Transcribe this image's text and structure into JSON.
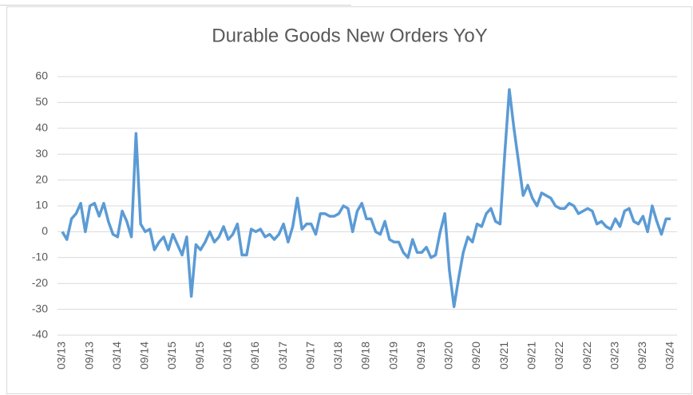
{
  "chart_data": {
    "type": "line",
    "title": "Durable Goods New Orders YoY",
    "categories": [
      "03/13",
      null,
      null,
      null,
      null,
      null,
      "09/13",
      null,
      null,
      null,
      null,
      null,
      "03/14",
      null,
      null,
      null,
      null,
      null,
      "09/14",
      null,
      null,
      null,
      null,
      null,
      "03/15",
      null,
      null,
      null,
      null,
      null,
      "09/15",
      null,
      null,
      null,
      null,
      null,
      "03/16",
      null,
      null,
      null,
      null,
      null,
      "09/16",
      null,
      null,
      null,
      null,
      null,
      "03/17",
      null,
      null,
      null,
      null,
      null,
      "09/17",
      null,
      null,
      null,
      null,
      null,
      "03/18",
      null,
      null,
      null,
      null,
      null,
      "09/18",
      null,
      null,
      null,
      null,
      null,
      "03/19",
      null,
      null,
      null,
      null,
      null,
      "09/19",
      null,
      null,
      null,
      null,
      null,
      "03/20",
      null,
      null,
      null,
      null,
      null,
      "09/20",
      null,
      null,
      null,
      null,
      null,
      "03/21",
      null,
      null,
      null,
      null,
      null,
      "09/21",
      null,
      null,
      null,
      null,
      null,
      "03/22",
      null,
      null,
      null,
      null,
      null,
      "09/22",
      null,
      null,
      null,
      null,
      null,
      "03/23",
      null,
      null,
      null,
      null,
      null,
      "09/23",
      null,
      null,
      null,
      null,
      null,
      "03/24"
    ],
    "series": [
      {
        "name": "Durable Goods New Orders YoY",
        "color": "#5b9bd5",
        "values": [
          0,
          -3,
          5,
          7,
          11,
          0,
          10,
          11,
          6,
          11,
          4,
          -1,
          -2,
          8,
          4,
          -2,
          38,
          3,
          0,
          1,
          -7,
          -4,
          -2,
          -7,
          -1,
          -5,
          -9,
          -2,
          -25,
          -5,
          -7,
          -4,
          0,
          -4,
          -2,
          2,
          -3,
          -1,
          3,
          -9,
          -9,
          1,
          0,
          1,
          -2,
          -1,
          -3,
          -1,
          3,
          -4,
          2,
          13,
          1,
          3,
          3,
          -1,
          7,
          7,
          6,
          6,
          7,
          10,
          9,
          0,
          8,
          11,
          5,
          5,
          0,
          -1,
          4,
          -3,
          -4,
          -4,
          -8,
          -10,
          -3,
          -8,
          -8,
          -6,
          -10,
          -9,
          0,
          7,
          -15,
          -29,
          -18,
          -8,
          -2,
          -4,
          3,
          2,
          7,
          9,
          4,
          3,
          30,
          55,
          40,
          27,
          14,
          18,
          13,
          10,
          15,
          14,
          13,
          10,
          9,
          9,
          11,
          10,
          7,
          8,
          9,
          8,
          3,
          4,
          2,
          1,
          5,
          2,
          8,
          9,
          4,
          3,
          6,
          0,
          10,
          4,
          -1,
          5,
          5
        ]
      }
    ],
    "ylim": [
      -40,
      60
    ],
    "yticks": [
      -40,
      -30,
      -20,
      -10,
      0,
      10,
      20,
      30,
      40,
      50,
      60
    ],
    "grid": true
  }
}
